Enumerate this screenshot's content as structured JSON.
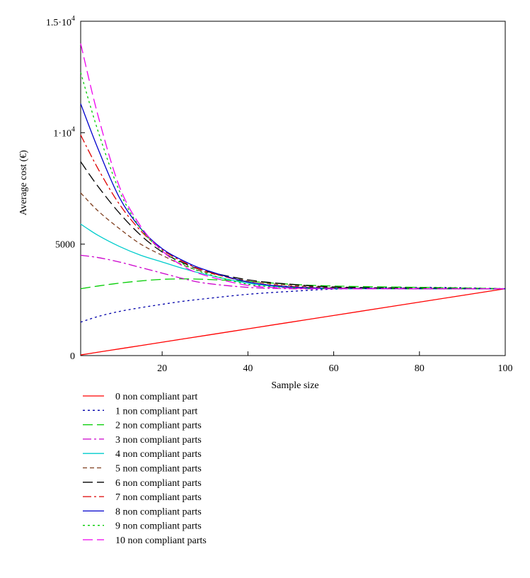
{
  "chart_data": {
    "type": "line",
    "xlabel": "Sample size",
    "ylabel": "Average cost (€)",
    "xlim": [
      1,
      100
    ],
    "ylim": [
      0,
      15000
    ],
    "grid": false,
    "legend_placement": "bottom-left, below plot",
    "x_ticks": [
      {
        "value": 20,
        "label": "20"
      },
      {
        "value": 40,
        "label": "40"
      },
      {
        "value": 60,
        "label": "60"
      },
      {
        "value": 80,
        "label": "80"
      },
      {
        "value": 100,
        "label": "100"
      }
    ],
    "y_ticks": [
      {
        "value": 0,
        "label": "0"
      },
      {
        "value": 5000,
        "label": "5000"
      },
      {
        "value": 10000,
        "label": "1·10",
        "exp": "4"
      },
      {
        "value": 15000,
        "label": "1.5·10",
        "exp": "4"
      }
    ],
    "x": [
      1,
      5,
      10,
      15,
      20,
      25,
      30,
      40,
      50,
      60,
      80,
      100
    ],
    "series": [
      {
        "name": "0 non compliant part",
        "color": "#ff0000",
        "dash": "solid",
        "values": [
          30,
          150,
          300,
          450,
          600,
          750,
          900,
          1200,
          1500,
          1800,
          2400,
          3000
        ]
      },
      {
        "name": "1 non compliant part",
        "color": "#0000aa",
        "dash": "dot",
        "values": [
          1500,
          1750,
          1980,
          2150,
          2300,
          2440,
          2550,
          2750,
          2880,
          2980,
          3060,
          3000
        ]
      },
      {
        "name": "2 non compliant parts",
        "color": "#00cc00",
        "dash": "longdash",
        "values": [
          3000,
          3120,
          3250,
          3350,
          3420,
          3440,
          3420,
          3330,
          3200,
          3120,
          3060,
          3000
        ]
      },
      {
        "name": "3 non compliant parts",
        "color": "#cc00cc",
        "dash": "dashdot",
        "values": [
          4500,
          4400,
          4200,
          3950,
          3700,
          3450,
          3250,
          3060,
          3000,
          3000,
          3000,
          3000
        ]
      },
      {
        "name": "4 non compliant parts",
        "color": "#00cccc",
        "dash": "solid",
        "values": [
          5900,
          5400,
          4900,
          4500,
          4200,
          3900,
          3650,
          3250,
          3050,
          3000,
          3000,
          3000
        ]
      },
      {
        "name": "5 non compliant parts",
        "color": "#7f3f1f",
        "dash": "shortdash",
        "values": [
          7300,
          6500,
          5700,
          5000,
          4500,
          4050,
          3750,
          3350,
          3150,
          3050,
          3000,
          3000
        ]
      },
      {
        "name": "6 non compliant parts",
        "color": "#000000",
        "dash": "longdash",
        "values": [
          8700,
          7600,
          6400,
          5400,
          4650,
          4150,
          3800,
          3400,
          3200,
          3080,
          3020,
          3000
        ]
      },
      {
        "name": "7 non compliant parts",
        "color": "#dd0000",
        "dash": "dashdot",
        "values": [
          9900,
          8400,
          6800,
          5600,
          4750,
          4200,
          3800,
          3300,
          3100,
          3030,
          3000,
          3000
        ]
      },
      {
        "name": "8 non compliant parts",
        "color": "#0000cc",
        "dash": "solid",
        "values": [
          11300,
          9300,
          7100,
          5700,
          4800,
          4250,
          3850,
          3300,
          3080,
          3020,
          3000,
          3000
        ]
      },
      {
        "name": "9 non compliant parts",
        "color": "#00cc00",
        "dash": "dot",
        "values": [
          12700,
          10100,
          7400,
          5700,
          4700,
          4100,
          3700,
          3200,
          3050,
          3010,
          3000,
          3000
        ]
      },
      {
        "name": "10 non compliant parts",
        "color": "#ee00ee",
        "dash": "longdash",
        "values": [
          14000,
          10800,
          7600,
          5800,
          4700,
          4000,
          3600,
          3150,
          3030,
          3000,
          3000,
          3000
        ]
      }
    ]
  }
}
